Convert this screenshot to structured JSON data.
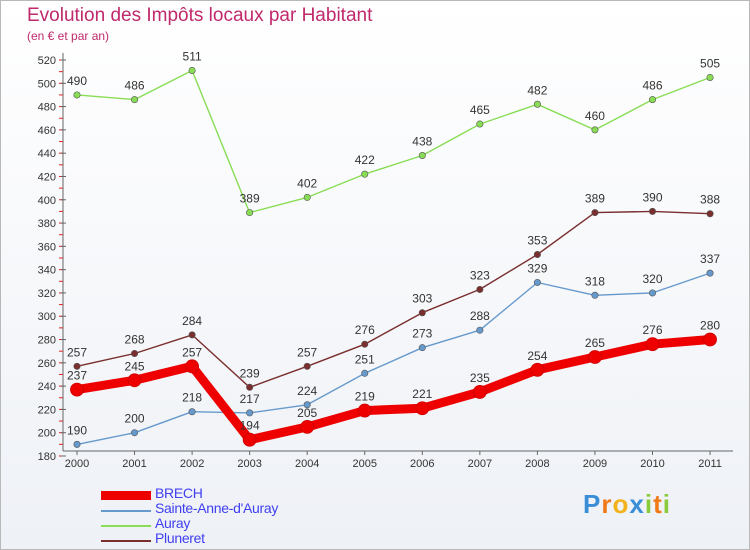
{
  "header": {
    "title": "Evolution des Impôts locaux par Habitant",
    "subtitle": "(en € et par an)"
  },
  "chart_data": {
    "type": "line",
    "title": "Evolution des Impôts locaux par Habitant",
    "subtitle": "(en € et par an)",
    "xlabel": "",
    "ylabel": "",
    "x": [
      "2000",
      "2001",
      "2002",
      "2003",
      "2004",
      "2005",
      "2006",
      "2007",
      "2008",
      "2009",
      "2010",
      "2011"
    ],
    "ylim": [
      180,
      520
    ],
    "yticks": [
      180,
      200,
      220,
      240,
      260,
      280,
      300,
      320,
      340,
      360,
      380,
      400,
      420,
      440,
      460,
      480,
      500,
      520
    ],
    "grid": false,
    "legend_position": "bottom-left",
    "series": [
      {
        "name": "BRECH",
        "color": "#ee0000",
        "values": [
          237,
          245,
          257,
          194,
          205,
          219,
          221,
          235,
          254,
          265,
          276,
          280
        ]
      },
      {
        "name": "Sainte-Anne-d'Auray",
        "color": "#6699cc",
        "values": [
          190,
          200,
          218,
          217,
          224,
          251,
          273,
          288,
          329,
          318,
          320,
          337
        ]
      },
      {
        "name": "Auray",
        "color": "#88dd55",
        "values": [
          490,
          486,
          511,
          389,
          402,
          422,
          438,
          465,
          482,
          460,
          486,
          505
        ]
      },
      {
        "name": "Pluneret",
        "color": "#7a2e2e",
        "values": [
          257,
          268,
          284,
          239,
          257,
          276,
          303,
          323,
          353,
          389,
          390,
          388
        ]
      }
    ]
  },
  "legend": {
    "items": [
      {
        "label": "BRECH",
        "color": "#ee0000"
      },
      {
        "label": "Sainte-Anne-d'Auray",
        "color": "#6699cc"
      },
      {
        "label": "Auray",
        "color": "#88dd55"
      },
      {
        "label": "Pluneret",
        "color": "#7a2e2e"
      }
    ]
  },
  "brand": {
    "letters": [
      "P",
      "r",
      "o",
      "x",
      "i",
      "t",
      "i"
    ],
    "colors": [
      "#3a8ed8",
      "#f07a1a",
      "#f2b21b",
      "#3a8ed8",
      "#8acb3c",
      "#f07a1a",
      "#8acb3c"
    ]
  }
}
